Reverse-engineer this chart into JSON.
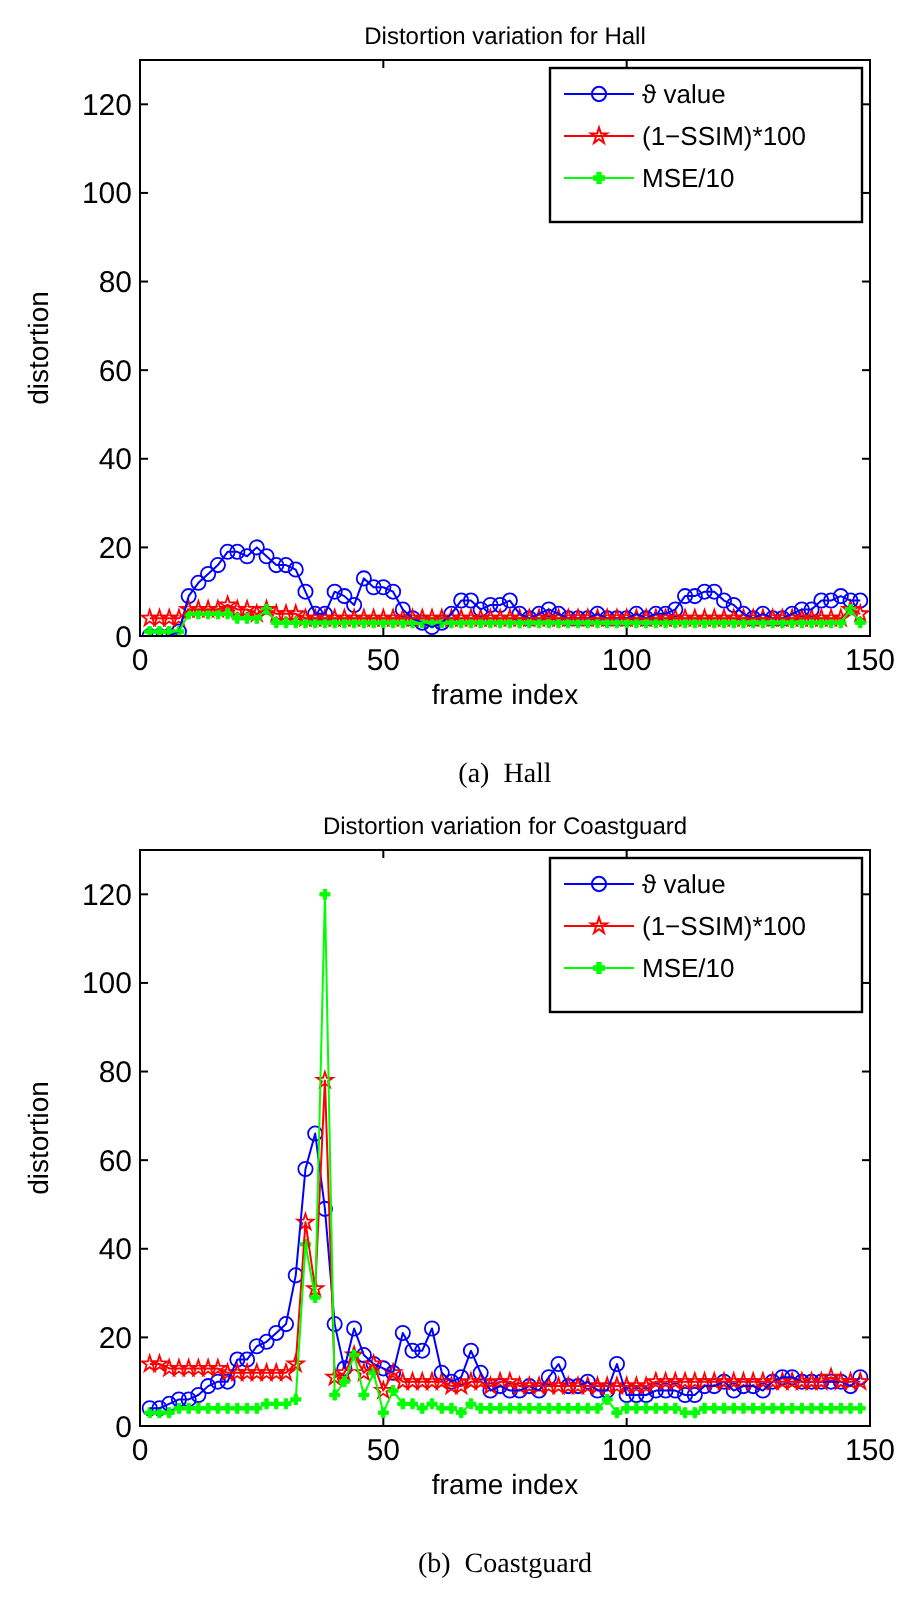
{
  "chart_data": [
    {
      "type": "line",
      "title": "Distortion variation for Hall",
      "xlabel": "frame index",
      "ylabel": "distortion",
      "annotations": [
        "(a)  Hall"
      ],
      "xlim": [
        0,
        150
      ],
      "xticks": [
        0,
        50,
        100,
        150
      ],
      "ylim": [
        0,
        130
      ],
      "yticks": [
        0,
        20,
        40,
        60,
        80,
        100,
        120
      ],
      "grid": false,
      "legend": "top right",
      "line_style": "solid",
      "x": [
        2,
        4,
        6,
        8,
        10,
        12,
        14,
        16,
        18,
        20,
        22,
        24,
        26,
        28,
        30,
        32,
        34,
        36,
        38,
        40,
        42,
        44,
        46,
        48,
        50,
        52,
        54,
        56,
        58,
        60,
        62,
        64,
        66,
        68,
        70,
        72,
        74,
        76,
        78,
        80,
        82,
        84,
        86,
        88,
        90,
        92,
        94,
        96,
        98,
        100,
        102,
        104,
        106,
        108,
        110,
        112,
        114,
        116,
        118,
        120,
        122,
        124,
        126,
        128,
        130,
        132,
        134,
        136,
        138,
        140,
        142,
        144,
        146,
        148
      ],
      "series": [
        {
          "name": "ϑ value",
          "color": "#0000ff",
          "marker": "circle",
          "values": [
            0,
            0,
            0,
            1,
            9,
            12,
            14,
            16,
            19,
            19,
            18,
            20,
            18,
            16,
            16,
            15,
            10,
            5,
            5,
            10,
            9,
            7,
            13,
            11,
            11,
            10,
            6,
            4,
            3,
            2,
            3,
            5,
            8,
            8,
            6,
            7,
            7,
            8,
            5,
            4,
            5,
            6,
            5,
            4,
            4,
            4,
            5,
            4,
            4,
            4,
            5,
            4,
            5,
            5,
            6,
            9,
            9,
            10,
            10,
            8,
            7,
            5,
            4,
            5,
            4,
            4,
            5,
            6,
            6,
            8,
            8,
            9,
            8,
            8
          ]
        },
        {
          "name": "(1−SSIM)*100",
          "color": "#ff0000",
          "marker": "star",
          "values": [
            4,
            4,
            4,
            4,
            6,
            6,
            6,
            6,
            7,
            6,
            6,
            5,
            6,
            5,
            5,
            5,
            4,
            4,
            4,
            4,
            4,
            4,
            4,
            4,
            4,
            4,
            4,
            4,
            4,
            4,
            4,
            4,
            4,
            4,
            4,
            4,
            4,
            4,
            4,
            4,
            4,
            4,
            4,
            4,
            4,
            4,
            4,
            4,
            4,
            4,
            4,
            4,
            4,
            4,
            4,
            4,
            4,
            4,
            4,
            4,
            4,
            4,
            4,
            4,
            4,
            4,
            4,
            4,
            4,
            4,
            4,
            4,
            6,
            5
          ]
        },
        {
          "name": "MSE/10",
          "color": "#00ff00",
          "marker": "cross",
          "values": [
            1,
            1,
            1,
            1,
            5,
            5,
            5,
            5,
            5,
            4,
            4,
            4,
            6,
            3,
            3,
            3,
            3,
            3,
            3,
            3,
            3,
            3,
            3,
            3,
            3,
            3,
            3,
            3,
            3,
            3,
            3,
            3,
            3,
            3,
            3,
            3,
            3,
            3,
            3,
            3,
            3,
            3,
            3,
            3,
            3,
            3,
            3,
            3,
            3,
            3,
            3,
            3,
            3,
            3,
            3,
            3,
            3,
            3,
            3,
            3,
            3,
            3,
            3,
            3,
            3,
            3,
            3,
            3,
            3,
            3,
            3,
            3,
            6,
            3
          ]
        }
      ]
    },
    {
      "type": "line",
      "title": "Distortion variation for Coastguard",
      "xlabel": "frame index",
      "ylabel": "distortion",
      "annotations": [
        "(b)  Coastguard"
      ],
      "xlim": [
        0,
        150
      ],
      "xticks": [
        0,
        50,
        100,
        150
      ],
      "ylim": [
        0,
        130
      ],
      "yticks": [
        0,
        20,
        40,
        60,
        80,
        100,
        120
      ],
      "grid": false,
      "legend": "top right",
      "line_style": "solid",
      "x": [
        2,
        4,
        6,
        8,
        10,
        12,
        14,
        16,
        18,
        20,
        22,
        24,
        26,
        28,
        30,
        32,
        34,
        36,
        38,
        40,
        42,
        44,
        46,
        48,
        50,
        52,
        54,
        56,
        58,
        60,
        62,
        64,
        66,
        68,
        70,
        72,
        74,
        76,
        78,
        80,
        82,
        84,
        86,
        88,
        90,
        92,
        94,
        96,
        98,
        100,
        102,
        104,
        106,
        108,
        110,
        112,
        114,
        116,
        118,
        120,
        122,
        124,
        126,
        128,
        130,
        132,
        134,
        136,
        138,
        140,
        142,
        144,
        146,
        148
      ],
      "series": [
        {
          "name": "ϑ value",
          "color": "#0000ff",
          "marker": "circle",
          "values": [
            4,
            4,
            5,
            6,
            6,
            7,
            9,
            10,
            10,
            15,
            15,
            18,
            19,
            21,
            23,
            34,
            58,
            66,
            49,
            23,
            13,
            22,
            16,
            14,
            13,
            12,
            21,
            17,
            17,
            22,
            12,
            10,
            11,
            17,
            12,
            8,
            9,
            8,
            8,
            9,
            8,
            11,
            14,
            9,
            9,
            10,
            8,
            8,
            14,
            7,
            7,
            7,
            8,
            8,
            8,
            7,
            7,
            9,
            9,
            10,
            8,
            9,
            9,
            8,
            10,
            11,
            11,
            10,
            10,
            10,
            10,
            10,
            9,
            11
          ]
        },
        {
          "name": "(1−SSIM)*100",
          "color": "#ff0000",
          "marker": "star",
          "values": [
            14,
            14,
            13,
            13,
            13,
            13,
            13,
            13,
            12,
            12,
            12,
            12,
            12,
            12,
            12,
            14,
            46,
            31,
            78,
            11,
            12,
            16,
            12,
            14,
            8,
            12,
            10,
            10,
            10,
            10,
            10,
            9,
            9,
            10,
            10,
            9,
            10,
            10,
            9,
            9,
            9,
            9,
            9,
            9,
            9,
            9,
            9,
            9,
            9,
            9,
            9,
            9,
            10,
            10,
            10,
            10,
            10,
            10,
            10,
            10,
            10,
            10,
            10,
            10,
            10,
            10,
            10,
            10,
            10,
            10,
            11,
            10,
            10,
            10
          ]
        },
        {
          "name": "MSE/10",
          "color": "#00ff00",
          "marker": "cross",
          "values": [
            3,
            3,
            3,
            4,
            4,
            4,
            4,
            4,
            4,
            4,
            4,
            4,
            5,
            5,
            5,
            6,
            41,
            29,
            120,
            7,
            10,
            16,
            7,
            12,
            3,
            8,
            5,
            5,
            4,
            5,
            4,
            4,
            3,
            5,
            4,
            4,
            4,
            4,
            4,
            4,
            4,
            4,
            4,
            4,
            4,
            4,
            4,
            6,
            3,
            4,
            4,
            4,
            4,
            4,
            4,
            3,
            3,
            4,
            4,
            4,
            4,
            4,
            4,
            4,
            4,
            4,
            4,
            4,
            4,
            4,
            4,
            4,
            4,
            4
          ]
        }
      ]
    }
  ]
}
